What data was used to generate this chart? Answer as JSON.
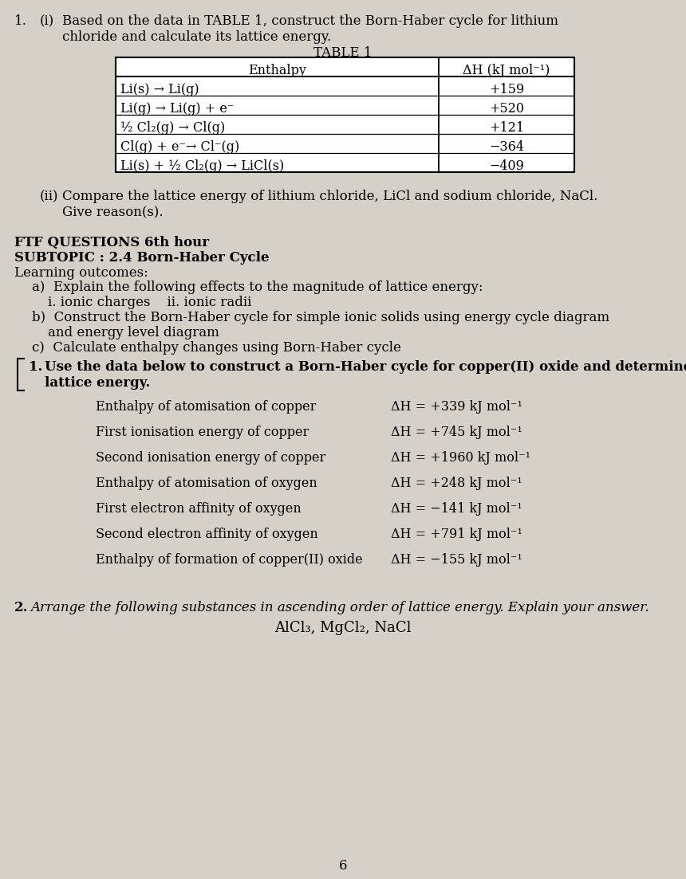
{
  "bg_color": "#d5d1c9",
  "page_number": "6",
  "table_title": "TABLE 1",
  "table_col1_header": "Enthalpy",
  "table_col2_header": "ΔH (kJ mol⁻¹)",
  "table_rows": [
    [
      "Li(s) → Li(g)",
      "+159"
    ],
    [
      "Li(g) → Li(g) + e⁻",
      "+520"
    ],
    [
      "½ Cl₂(g) → Cl(g)",
      "+121"
    ],
    [
      "Cl(g) + e⁻→ Cl⁻(g)",
      "−364"
    ],
    [
      "Li(s) + ½ Cl₂(g) → LiCl(s)",
      "−409"
    ]
  ],
  "ftf_heading": "FTF QUESTIONS 6th hour",
  "subtopic_heading": "SUBTOPIC : 2.4 Born-Haber Cycle",
  "learning_outcomes_heading": "Learning outcomes:",
  "copper_data_left": [
    "Enthalpy of atomisation of copper",
    "First ionisation energy of copper",
    "Second ionisation energy of copper",
    "Enthalpy of atomisation of oxygen",
    "First electron affinity of oxygen",
    "Second electron affinity of oxygen",
    "Enthalpy of formation of copper(II) oxide"
  ],
  "copper_data_right": [
    "ΔH = +339 kJ mol⁻¹",
    "ΔH = +745 kJ mol⁻¹",
    "ΔH = +1960 kJ mol⁻¹",
    "ΔH = +248 kJ mol⁻¹",
    "ΔH = −141 kJ mol⁻¹",
    "ΔH = +791 kJ mol⁻¹",
    "ΔH = −155 kJ mol⁻¹"
  ],
  "question3_substances": "AlCl₃, MgCl₂, NaCl"
}
